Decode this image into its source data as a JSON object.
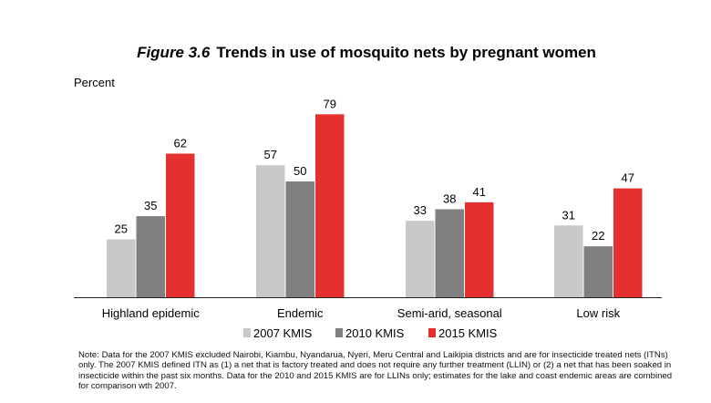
{
  "chart_data": {
    "type": "bar",
    "figure_number": "Figure 3.6",
    "title": "Trends in use of mosquito nets by pregnant women",
    "ylabel": "Percent",
    "xlabel": "",
    "ylim": [
      0,
      85
    ],
    "grid": false,
    "legend_position": "bottom",
    "categories": [
      "Highland epidemic",
      "Endemic",
      "Semi-arid, seasonal",
      "Low risk"
    ],
    "series": [
      {
        "name": "2007 KMIS",
        "color": "#c8c8c8",
        "values": [
          25,
          57,
          33,
          31
        ]
      },
      {
        "name": "2010 KMIS",
        "color": "#7f7f7f",
        "values": [
          35,
          50,
          38,
          22
        ]
      },
      {
        "name": "2015 KMIS",
        "color": "#e63030",
        "values": [
          62,
          79,
          41,
          47
        ]
      }
    ],
    "note": "Note: Data for the 2007 KMIS excluded Nairobi, Kiambu, Nyandarua, Nyeri, Meru Central and Laikipia districts and are for insecticide treated nets (ITNs) only. The 2007 KMIS defined ITN as (1) a net that is factory treated and does not require any further treatment (LLIN) or (2) a net that has been soaked in insecticide within the past six months. Data for the 2010 and 2015 KMIS are for LLINs only; estimates for the lake and coast endemic areas are combined for comparison wth 2007."
  }
}
